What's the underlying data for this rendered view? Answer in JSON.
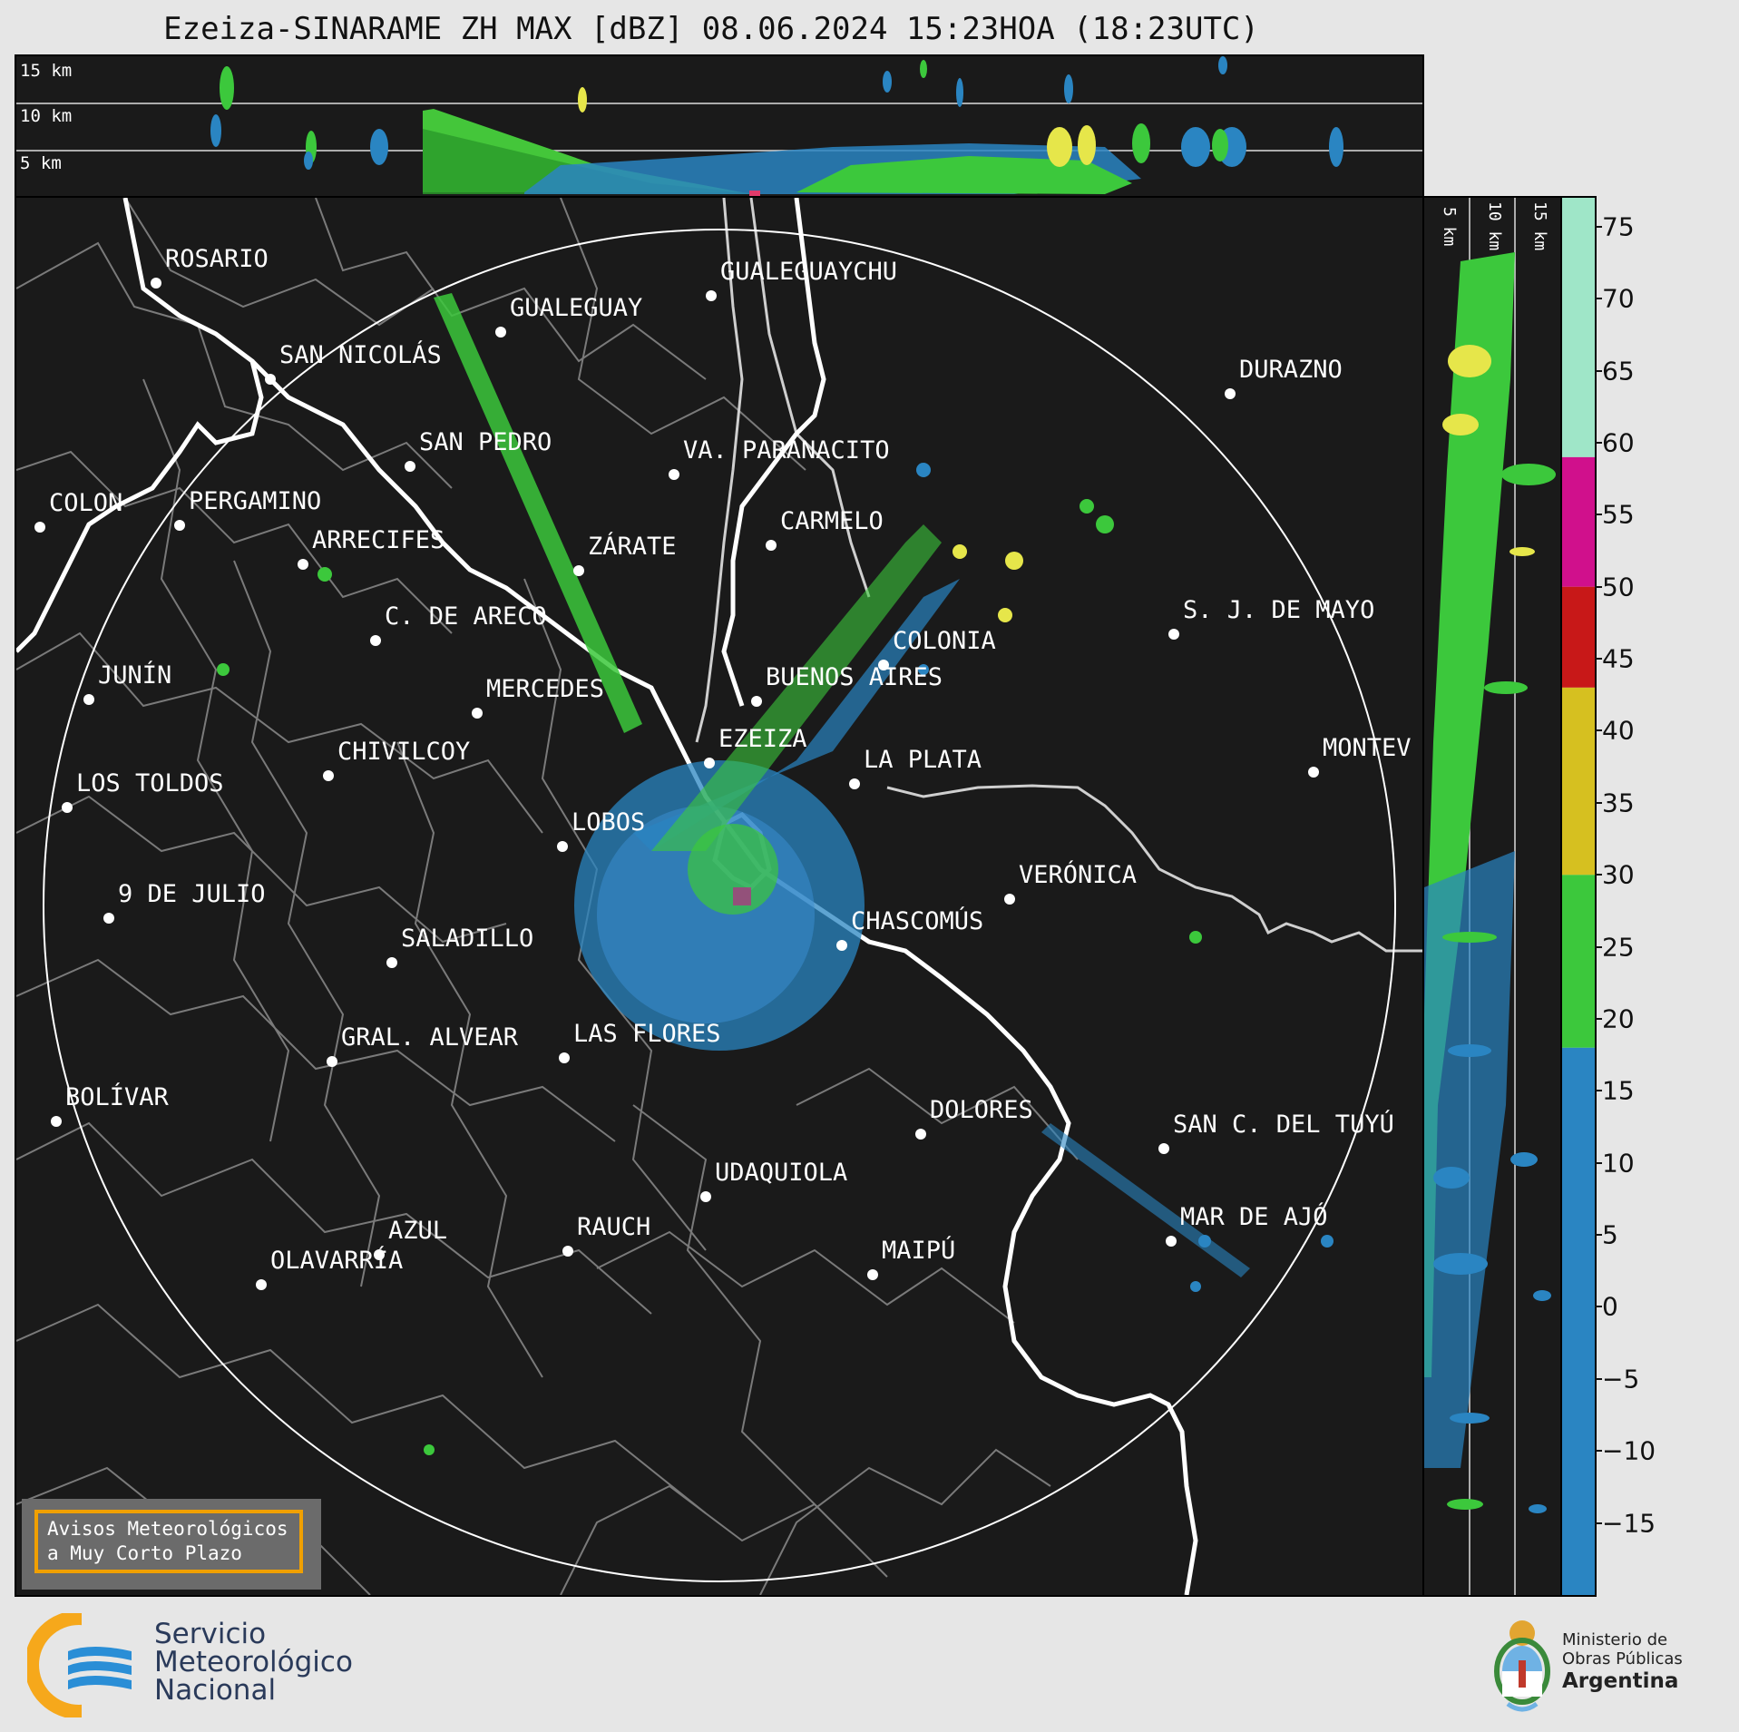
{
  "title": "Ezeiza-SINARAME ZH MAX [dBZ] 08.06.2024 15:23HOA (18:23UTC)",
  "top_panel": {
    "height_labels": [
      "15 km",
      "10 km",
      "5 km"
    ]
  },
  "side_panel": {
    "height_labels": [
      "5 km",
      "10 km",
      "15 km"
    ]
  },
  "colorbar": {
    "unit": "dBZ",
    "ticks": [
      "75",
      "70",
      "65",
      "60",
      "55",
      "50",
      "45",
      "40",
      "35",
      "30",
      "25",
      "20",
      "15",
      "10",
      "5",
      "0",
      "−5",
      "−10",
      "−15"
    ],
    "color_stops": [
      {
        "from": -20,
        "to": 18,
        "color": "#2a85c2"
      },
      {
        "from": 18,
        "to": 30,
        "color": "#3cc83c"
      },
      {
        "from": 30,
        "to": 43,
        "color": "#d6c020"
      },
      {
        "from": 43,
        "to": 50,
        "color": "#c81818"
      },
      {
        "from": 50,
        "to": 59,
        "color": "#d0108c"
      },
      {
        "from": 59,
        "to": 77,
        "color": "#9fe6c8"
      }
    ]
  },
  "cities": [
    {
      "name": "ROSARIO"
    },
    {
      "name": "GUALEGUAYCHU"
    },
    {
      "name": "GUALEGUAY"
    },
    {
      "name": "SAN NICOLÁS"
    },
    {
      "name": "DURAZNO"
    },
    {
      "name": "SAN PEDRO"
    },
    {
      "name": "VA. PARANACITO"
    },
    {
      "name": "COLON"
    },
    {
      "name": "PERGAMINO"
    },
    {
      "name": "CARMELO"
    },
    {
      "name": "ARRECIFES"
    },
    {
      "name": "ZÁRATE"
    },
    {
      "name": "S. J. DE MAYO"
    },
    {
      "name": "C. DE ARECO"
    },
    {
      "name": "COLONIA"
    },
    {
      "name": "JUNÍN"
    },
    {
      "name": "BUENOS AIRES"
    },
    {
      "name": "MERCEDES"
    },
    {
      "name": "EZEIZA"
    },
    {
      "name": "MONTEV"
    },
    {
      "name": "CHIVILCOY"
    },
    {
      "name": "LA PLATA"
    },
    {
      "name": "LOS TOLDOS"
    },
    {
      "name": "LOBOS"
    },
    {
      "name": "VERÓNICA"
    },
    {
      "name": "9 DE JULIO"
    },
    {
      "name": "CHASCOMÚS"
    },
    {
      "name": "SALADILLO"
    },
    {
      "name": "GRAL. ALVEAR"
    },
    {
      "name": "LAS FLORES"
    },
    {
      "name": "BOLÍVAR"
    },
    {
      "name": "DOLORES"
    },
    {
      "name": "SAN C. DEL TUYÚ"
    },
    {
      "name": "UDAQUIOLA"
    },
    {
      "name": "AZUL"
    },
    {
      "name": "RAUCH"
    },
    {
      "name": "MAR DE AJÓ"
    },
    {
      "name": "OLAVARRÍA"
    },
    {
      "name": "MAIPÚ"
    }
  ],
  "warning_box": {
    "line1": "Avisos Meteorológicos",
    "line2": "a Muy Corto Plazo"
  },
  "logos": {
    "smn": [
      "Servicio",
      "Meteorológico",
      "Nacional"
    ],
    "ministry": [
      "Ministerio de",
      "Obras Públicas",
      "Argentina"
    ]
  }
}
